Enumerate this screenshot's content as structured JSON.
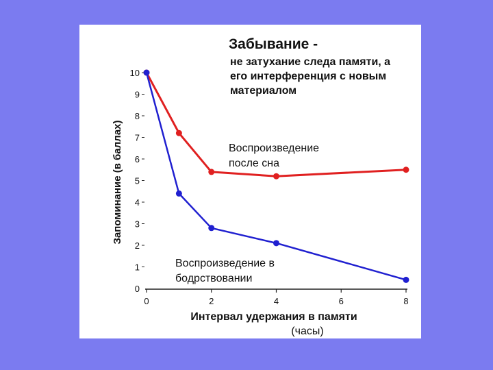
{
  "chart_data": {
    "type": "line",
    "title": "Забывание -",
    "subtitle_lines": [
      "не затухание следа памяти, а",
      "его интерференция с новым",
      "материалом"
    ],
    "xlabel": "Интервал удержания в памяти",
    "xlabel_unit": "(часы)",
    "ylabel": "Запоминание (в баллах)",
    "xlim": [
      0,
      8
    ],
    "ylim": [
      0,
      10
    ],
    "x_ticks": [
      0,
      2,
      4,
      6,
      8
    ],
    "y_ticks": [
      0,
      1,
      2,
      3,
      4,
      5,
      6,
      7,
      8,
      9,
      10
    ],
    "grid": false,
    "series": [
      {
        "name": "Воспроизведение после сна",
        "label_lines": [
          "Воспроизведение",
          "после сна"
        ],
        "color": "#e02020",
        "x": [
          0,
          1,
          2,
          4,
          8
        ],
        "y": [
          10,
          7.2,
          5.4,
          5.2,
          5.5
        ]
      },
      {
        "name": "Воспроизведение в бодрствовании",
        "label_lines": [
          "Воспроизведение в",
          "бодрствовании"
        ],
        "color": "#2020d0",
        "x": [
          0,
          1,
          2,
          4,
          8
        ],
        "y": [
          10,
          4.4,
          2.8,
          2.1,
          0.4
        ]
      }
    ]
  }
}
